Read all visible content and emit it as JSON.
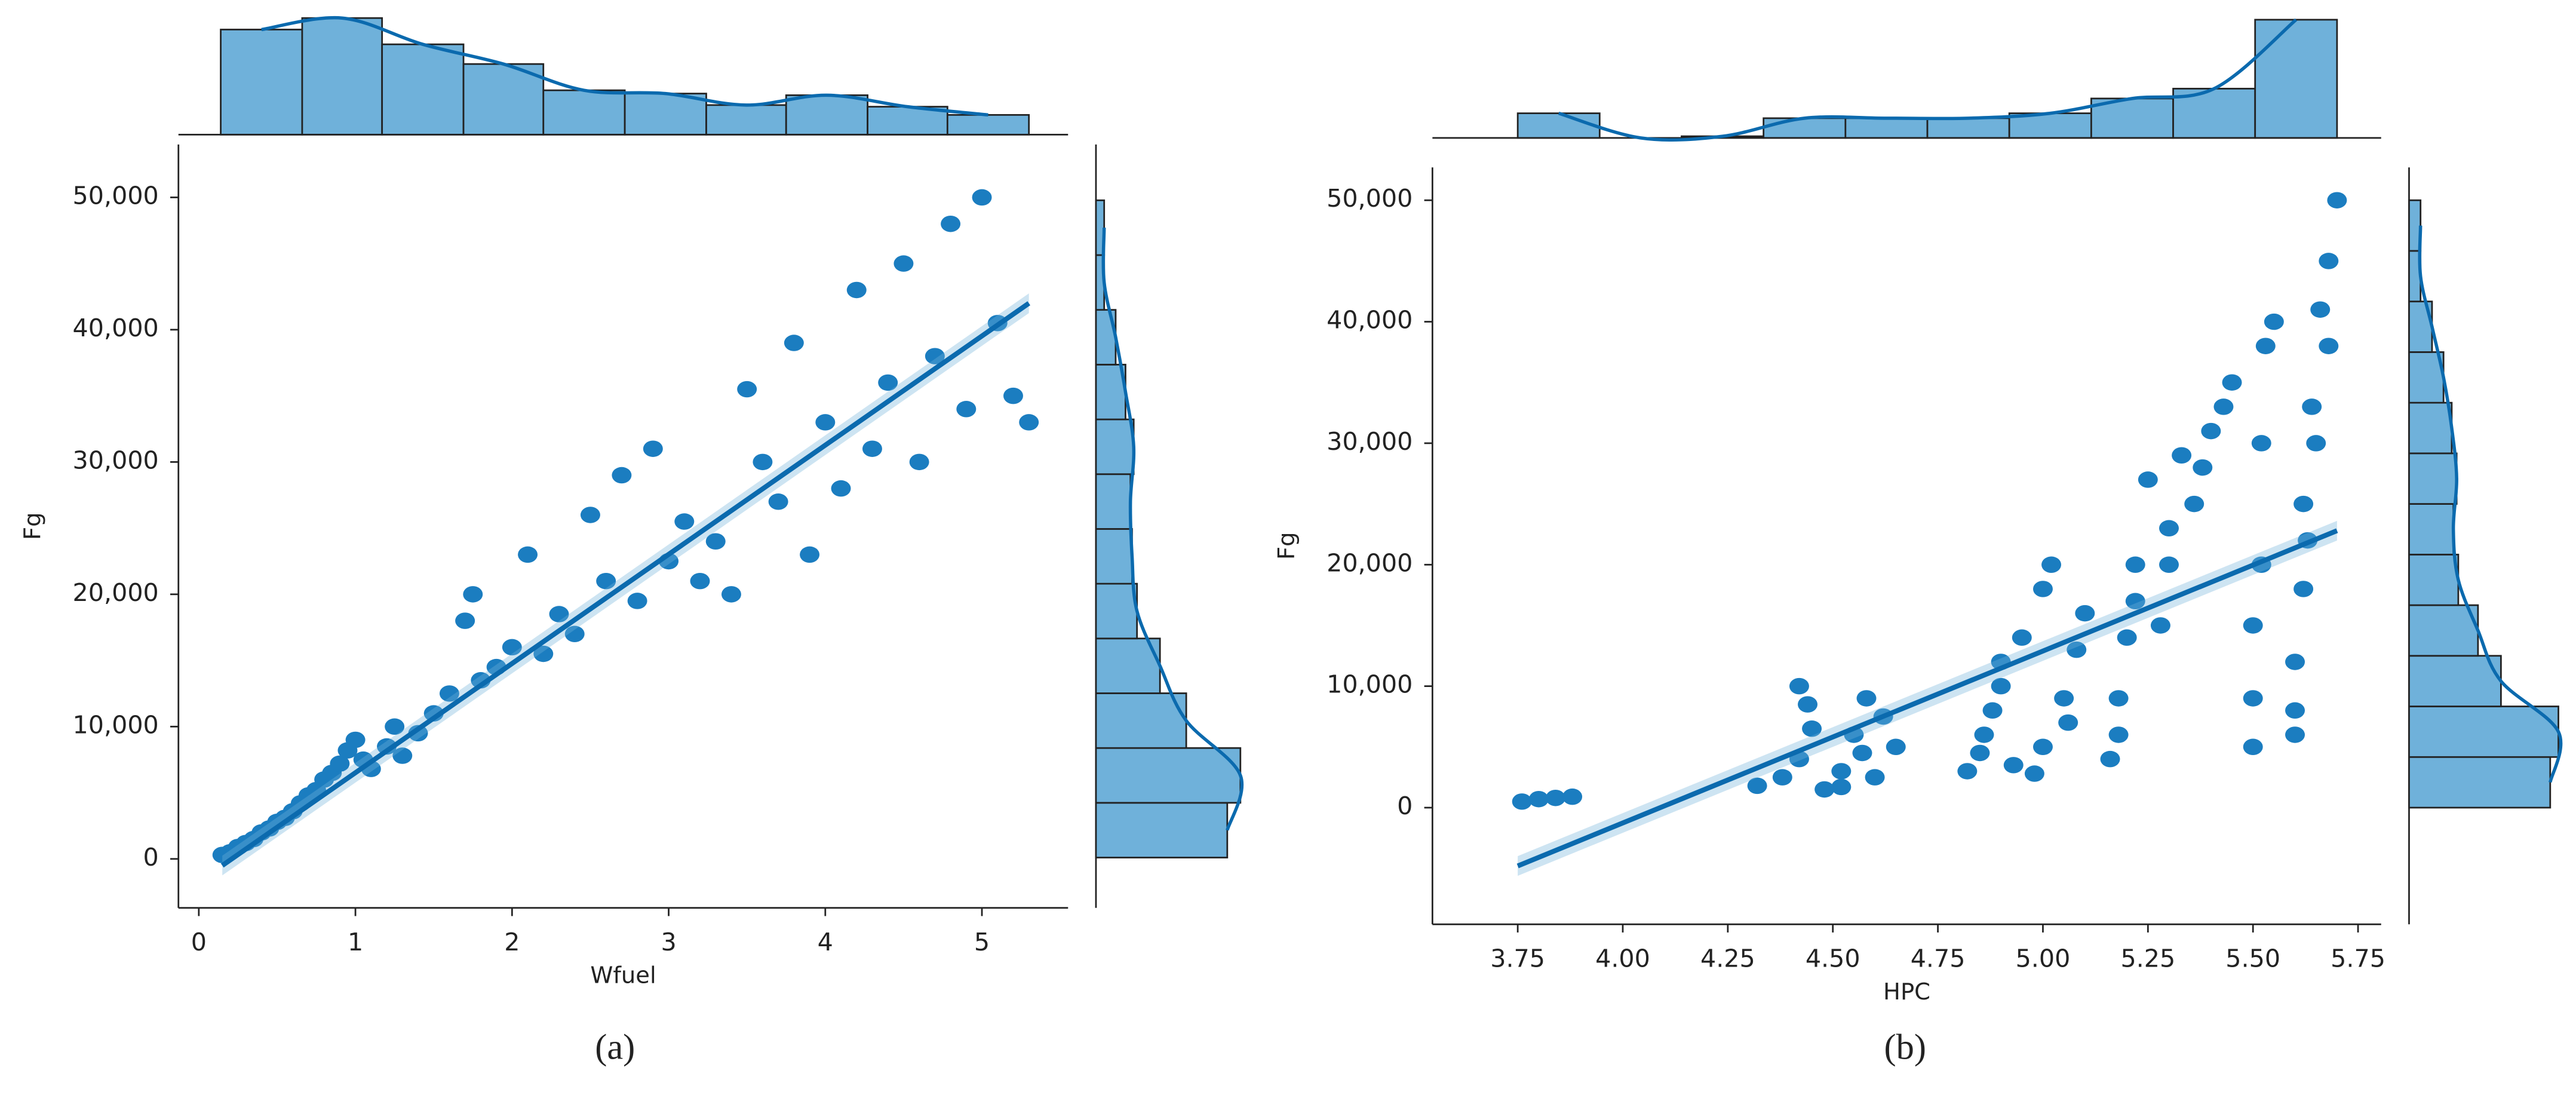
{
  "chart_data": [
    {
      "type": "scatter",
      "label": "(a)",
      "x_label": "Wfuel",
      "y_label": "Fg",
      "color": "#1b7dc0",
      "hist_color": "#6fb1da",
      "line_color": "#0b6aae",
      "xlim": [
        -0.13,
        5.55
      ],
      "ylim": [
        -3700,
        54000
      ],
      "xticks": [
        0,
        1,
        2,
        3,
        4,
        5
      ],
      "yticks": [
        0,
        {
          "value": 10000,
          "label": "10,000"
        },
        {
          "value": 20000,
          "label": "20,000"
        },
        {
          "value": 30000,
          "label": "30,000"
        },
        {
          "value": 40000,
          "label": "40,000"
        },
        {
          "value": 50000,
          "label": "50,000"
        }
      ],
      "x": [
        0.15,
        0.2,
        0.25,
        0.3,
        0.35,
        0.4,
        0.45,
        0.5,
        0.55,
        0.6,
        0.65,
        0.7,
        0.75,
        0.8,
        0.85,
        0.9,
        0.95,
        1.0,
        1.05,
        1.1,
        1.2,
        1.25,
        1.3,
        1.4,
        1.5,
        1.6,
        1.7,
        1.75,
        1.8,
        1.9,
        2.0,
        2.1,
        2.2,
        2.3,
        2.4,
        2.5,
        2.6,
        2.7,
        2.8,
        2.9,
        3.0,
        3.1,
        3.2,
        3.3,
        3.4,
        3.5,
        3.6,
        3.7,
        3.8,
        3.9,
        4.0,
        4.1,
        4.2,
        4.3,
        4.4,
        4.5,
        4.6,
        4.7,
        4.8,
        4.9,
        5.0,
        5.1,
        5.2,
        5.3
      ],
      "values": [
        300,
        500,
        900,
        1200,
        1500,
        2000,
        2300,
        2800,
        3100,
        3600,
        4200,
        4800,
        5200,
        6000,
        6500,
        7200,
        8200,
        9000,
        7500,
        6800,
        8500,
        10000,
        7800,
        9500,
        11000,
        12500,
        18000,
        20000,
        13500,
        14500,
        16000,
        23000,
        15500,
        18500,
        17000,
        26000,
        21000,
        29000,
        19500,
        31000,
        22500,
        25500,
        21000,
        24000,
        20000,
        35500,
        30000,
        27000,
        39000,
        23000,
        33000,
        28000,
        43000,
        31000,
        36000,
        45000,
        30000,
        38000,
        48000,
        34000,
        50000,
        40500,
        35000,
        33000
      ],
      "fit": {
        "x": [
          0.15,
          5.3
        ],
        "values": [
          -500,
          42000
        ]
      },
      "top_histogram": {
        "bins": [
          0.14,
          0.66,
          1.17,
          1.69,
          2.2,
          2.72,
          3.24,
          3.75,
          4.27,
          4.78,
          5.3
        ],
        "counts": [
          64,
          71,
          55,
          43,
          27,
          25,
          18,
          24,
          17,
          12
        ]
      },
      "right_histogram": {
        "bins": [
          100,
          4240,
          8380,
          12520,
          16660,
          20800,
          24940,
          29080,
          33220,
          37360,
          41500,
          45640,
          49780
        ],
        "counts": [
          80,
          88,
          55,
          39,
          25,
          22,
          21,
          23,
          18,
          12,
          5,
          5
        ]
      }
    },
    {
      "type": "scatter",
      "label": "(b)",
      "x_label": "HPC",
      "y_label": "Fg",
      "color": "#1b7dc0",
      "hist_color": "#6fb1da",
      "line_color": "#0b6aae",
      "xlim": [
        3.547,
        5.805
      ],
      "ylim": [
        -9600,
        52700
      ],
      "xticks": [
        3.75,
        {
          "value": 4,
          "label": "4.00"
        },
        4.25,
        {
          "value": 4.5,
          "label": "4.50"
        },
        4.75,
        {
          "value": 5,
          "label": "5.00"
        },
        5.25,
        {
          "value": 5.5,
          "label": "5.50"
        },
        5.75
      ],
      "yticks": [
        0,
        {
          "value": 10000,
          "label": "10,000"
        },
        {
          "value": 20000,
          "label": "20,000"
        },
        {
          "value": 30000,
          "label": "30,000"
        },
        {
          "value": 40000,
          "label": "40,000"
        },
        {
          "value": 50000,
          "label": "50,000"
        }
      ],
      "x": [
        3.76,
        3.8,
        3.84,
        3.88,
        4.32,
        4.38,
        4.42,
        4.45,
        4.42,
        4.48,
        4.44,
        4.52,
        4.55,
        4.58,
        4.6,
        4.62,
        4.65,
        4.52,
        4.57,
        4.82,
        4.85,
        4.88,
        4.9,
        4.93,
        4.86,
        4.9,
        4.95,
        4.98,
        5.0,
        5.02,
        5.05,
        5.08,
        5.1,
        5.0,
        5.06,
        5.16,
        5.18,
        5.2,
        5.22,
        5.25,
        5.18,
        5.22,
        5.28,
        5.3,
        5.33,
        5.36,
        5.4,
        5.43,
        5.3,
        5.38,
        5.45,
        5.5,
        5.5,
        5.52,
        5.53,
        5.5,
        5.52,
        5.55,
        5.6,
        5.6,
        5.62,
        5.62,
        5.64,
        5.66,
        5.68,
        5.7,
        5.68,
        5.65,
        5.6,
        5.63
      ],
      "values": [
        500,
        700,
        800,
        900,
        1800,
        2500,
        4000,
        6500,
        10000,
        1500,
        8500,
        3000,
        6000,
        9000,
        2500,
        7500,
        5000,
        1700,
        4500,
        3000,
        4500,
        8000,
        12000,
        3500,
        6000,
        10000,
        14000,
        2800,
        18000,
        20000,
        9000,
        13000,
        16000,
        5000,
        7000,
        4000,
        9000,
        14000,
        20000,
        27000,
        6000,
        17000,
        15000,
        23000,
        29000,
        25000,
        31000,
        33000,
        20000,
        28000,
        35000,
        5000,
        15000,
        20000,
        38000,
        9000,
        30000,
        40000,
        6000,
        12000,
        18000,
        25000,
        33000,
        41000,
        45000,
        50000,
        38000,
        30000,
        8000,
        22000
      ],
      "fit": {
        "x": [
          3.75,
          5.7
        ],
        "values": [
          -4800,
          22800
        ]
      },
      "top_histogram": {
        "bins": [
          3.75,
          3.945,
          4.14,
          4.335,
          4.53,
          4.725,
          4.92,
          5.115,
          5.31,
          5.505,
          5.7
        ],
        "counts": [
          15,
          0,
          1,
          12,
          12,
          12,
          15,
          24,
          30,
          72
        ]
      },
      "right_histogram": {
        "bins": [
          0,
          4167,
          8333,
          12500,
          16667,
          20833,
          25000,
          29167,
          33333,
          37500,
          41667,
          45833,
          50000
        ],
        "counts": [
          86,
          91,
          56,
          42,
          30,
          27,
          29,
          26,
          21,
          14,
          7,
          7
        ]
      }
    }
  ]
}
